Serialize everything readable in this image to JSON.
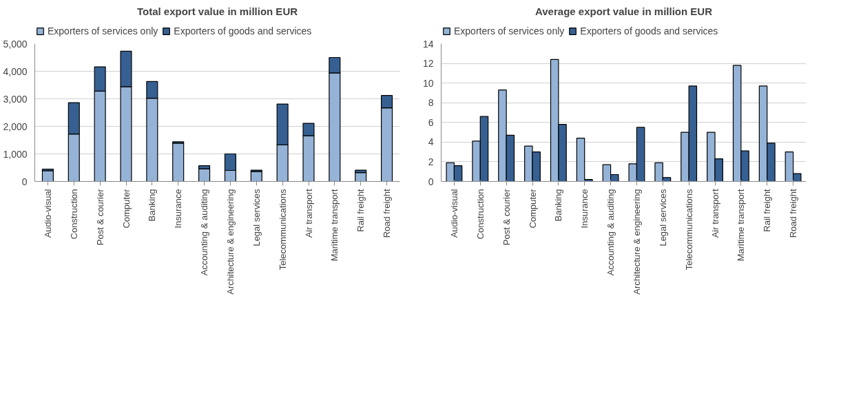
{
  "chart_data": [
    {
      "type": "bar",
      "title": "Total export value in million EUR",
      "stacked": true,
      "legend": "top left",
      "grid": "y",
      "categories": [
        "Audio-visual",
        "Construction",
        "Post & courier",
        "Computer",
        "Banking",
        "Insurance",
        "Accounting & auditing",
        "Architecture & engineering",
        "Legal services",
        "Telecommunications",
        "Air transport",
        "Maritime transport",
        "Rail freight",
        "Road freight"
      ],
      "series": [
        {
          "name": "Exporters of services only",
          "color": "#95b3d7",
          "values": [
            390,
            1720,
            3280,
            3440,
            3020,
            1390,
            460,
            400,
            360,
            1330,
            1660,
            3940,
            320,
            2670
          ]
        },
        {
          "name": "Exporters of goods and services",
          "color": "#376092",
          "values": [
            60,
            1140,
            880,
            1290,
            610,
            50,
            110,
            600,
            50,
            1480,
            450,
            560,
            90,
            450
          ]
        }
      ],
      "ylim": [
        0,
        5000
      ],
      "yticks": [
        0,
        {
          "value": 1000,
          "label": "1,000"
        },
        {
          "value": 2000,
          "label": "2,000"
        },
        {
          "value": 3000,
          "label": "3,000"
        },
        {
          "value": 4000,
          "label": "4,000"
        },
        {
          "value": 5000,
          "label": "5,000"
        }
      ]
    },
    {
      "type": "bar",
      "title": "Average export value in million EUR",
      "legend": "top left",
      "grid": "y",
      "categories": [
        "Audio-visual",
        "Construction",
        "Post & courier",
        "Computer",
        "Banking",
        "Insurance",
        "Accounting & auditing",
        "Architecture & engineering",
        "Legal services",
        "Telecommunications",
        "Air transport",
        "Maritime transport",
        "Rail freight",
        "Road freight"
      ],
      "series": [
        {
          "name": "Exporters of services only",
          "color": "#95b3d7",
          "values": [
            1.9,
            4.1,
            9.3,
            3.6,
            12.4,
            4.4,
            1.7,
            1.8,
            1.9,
            5.0,
            5.0,
            11.8,
            9.7,
            3.0
          ]
        },
        {
          "name": "Exporters of goods and services",
          "color": "#376092",
          "values": [
            1.6,
            6.6,
            4.7,
            3.0,
            5.8,
            0.2,
            0.7,
            5.5,
            0.4,
            9.7,
            2.3,
            3.1,
            3.9,
            0.8
          ]
        }
      ],
      "ylim": [
        0,
        14
      ],
      "yticks": [
        0,
        2,
        4,
        6,
        8,
        10,
        12,
        14
      ]
    }
  ]
}
